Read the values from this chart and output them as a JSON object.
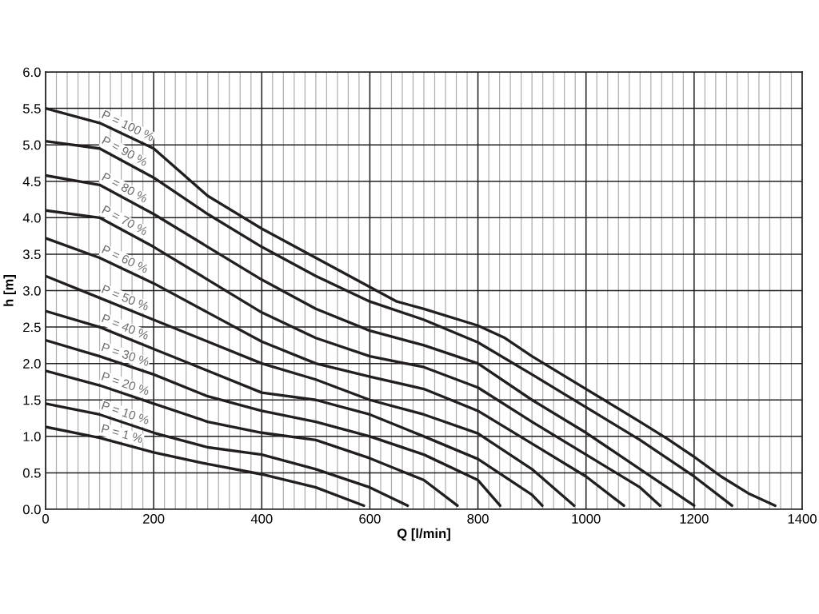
{
  "chart_data": {
    "type": "line",
    "xlabel": "Q [l/min]",
    "ylabel": "h [m]",
    "xlim": [
      0,
      1400
    ],
    "ylim": [
      0,
      6.0
    ],
    "xticks": [
      0,
      {
        "value": 20,
        "label": null
      },
      {
        "value": 40,
        "label": null
      },
      {
        "value": 60,
        "label": null
      },
      {
        "value": 80,
        "label": null
      },
      {
        "value": 100,
        "label": null
      },
      {
        "value": 120,
        "label": null
      },
      {
        "value": 140,
        "label": null
      },
      {
        "value": 160,
        "label": null
      },
      {
        "value": 180,
        "label": null
      },
      200,
      {
        "value": 220,
        "label": null
      },
      {
        "value": 240,
        "label": null
      },
      {
        "value": 260,
        "label": null
      },
      {
        "value": 280,
        "label": null
      },
      {
        "value": 300,
        "label": null
      },
      {
        "value": 320,
        "label": null
      },
      {
        "value": 340,
        "label": null
      },
      {
        "value": 360,
        "label": null
      },
      {
        "value": 380,
        "label": null
      },
      400,
      {
        "value": 420,
        "label": null
      },
      {
        "value": 440,
        "label": null
      },
      {
        "value": 460,
        "label": null
      },
      {
        "value": 480,
        "label": null
      },
      {
        "value": 500,
        "label": null
      },
      {
        "value": 520,
        "label": null
      },
      {
        "value": 540,
        "label": null
      },
      {
        "value": 560,
        "label": null
      },
      {
        "value": 580,
        "label": null
      },
      600,
      {
        "value": 620,
        "label": null
      },
      {
        "value": 640,
        "label": null
      },
      {
        "value": 660,
        "label": null
      },
      {
        "value": 680,
        "label": null
      },
      {
        "value": 700,
        "label": null
      },
      {
        "value": 720,
        "label": null
      },
      {
        "value": 740,
        "label": null
      },
      {
        "value": 760,
        "label": null
      },
      {
        "value": 780,
        "label": null
      },
      800,
      {
        "value": 820,
        "label": null
      },
      {
        "value": 840,
        "label": null
      },
      {
        "value": 860,
        "label": null
      },
      {
        "value": 880,
        "label": null
      },
      {
        "value": 900,
        "label": null
      },
      {
        "value": 920,
        "label": null
      },
      {
        "value": 940,
        "label": null
      },
      {
        "value": 960,
        "label": null
      },
      {
        "value": 980,
        "label": null
      },
      1000,
      {
        "value": 1020,
        "label": null
      },
      {
        "value": 1040,
        "label": null
      },
      {
        "value": 1060,
        "label": null
      },
      {
        "value": 1080,
        "label": null
      },
      {
        "value": 1100,
        "label": null
      },
      {
        "value": 1120,
        "label": null
      },
      {
        "value": 1140,
        "label": null
      },
      {
        "value": 1160,
        "label": null
      },
      {
        "value": 1180,
        "label": null
      },
      1200,
      {
        "value": 1220,
        "label": null
      },
      {
        "value": 1240,
        "label": null
      },
      {
        "value": 1260,
        "label": null
      },
      {
        "value": 1280,
        "label": null
      },
      {
        "value": 1300,
        "label": null
      },
      {
        "value": 1320,
        "label": null
      },
      {
        "value": 1340,
        "label": null
      },
      {
        "value": 1360,
        "label": null
      },
      {
        "value": 1380,
        "label": null
      },
      1400
    ],
    "yticks": [
      {
        "value": 0,
        "label": "0.0"
      },
      0.5,
      {
        "value": 1,
        "label": "1.0"
      },
      1.5,
      {
        "value": 2,
        "label": "2.0"
      },
      2.5,
      {
        "value": 3,
        "label": "3.0"
      },
      3.5,
      {
        "value": 4,
        "label": "4.0"
      },
      4.5,
      {
        "value": 5,
        "label": "5.0"
      },
      5.5,
      {
        "value": 6,
        "label": "6.0"
      }
    ],
    "grid": true,
    "legend": false,
    "marker": "none",
    "line_style": "solid",
    "series": [
      {
        "name": "P = 100 %",
        "color": "#231f20",
        "x": [
          0,
          100,
          200,
          300,
          400,
          500,
          600,
          650,
          700,
          800,
          850,
          900,
          1000,
          1100,
          1150,
          1200,
          1250,
          1300,
          1350
        ],
        "values": [
          5.5,
          5.3,
          4.95,
          4.3,
          3.85,
          3.45,
          3.05,
          2.85,
          2.75,
          2.52,
          2.35,
          2.1,
          1.65,
          1.2,
          0.97,
          0.72,
          0.45,
          0.22,
          0.05
        ]
      },
      {
        "name": "P = 90 %",
        "color": "#231f20",
        "x": [
          0,
          100,
          200,
          300,
          400,
          500,
          600,
          700,
          800,
          900,
          1000,
          1100,
          1200,
          1270
        ],
        "values": [
          5.05,
          4.95,
          4.55,
          4.05,
          3.6,
          3.2,
          2.85,
          2.6,
          2.29,
          1.85,
          1.4,
          0.95,
          0.45,
          0.05
        ]
      },
      {
        "name": "P = 80 %",
        "color": "#231f20",
        "x": [
          0,
          100,
          200,
          300,
          400,
          500,
          600,
          700,
          800,
          900,
          1000,
          1100,
          1200
        ],
        "values": [
          4.58,
          4.45,
          4.05,
          3.6,
          3.15,
          2.75,
          2.45,
          2.25,
          2.0,
          1.5,
          1.05,
          0.55,
          0.05
        ]
      },
      {
        "name": "P = 70 %",
        "color": "#231f20",
        "x": [
          0,
          100,
          200,
          300,
          400,
          500,
          600,
          700,
          800,
          900,
          1000,
          1100,
          1137
        ],
        "values": [
          4.1,
          4.0,
          3.6,
          3.15,
          2.7,
          2.35,
          2.1,
          1.95,
          1.67,
          1.2,
          0.75,
          0.3,
          0.05
        ]
      },
      {
        "name": "P = 60 %",
        "color": "#231f20",
        "x": [
          0,
          100,
          200,
          300,
          400,
          500,
          600,
          700,
          800,
          900,
          1000,
          1070
        ],
        "values": [
          3.72,
          3.45,
          3.1,
          2.7,
          2.3,
          2.0,
          1.82,
          1.65,
          1.35,
          0.9,
          0.45,
          0.05
        ]
      },
      {
        "name": "P = 50 %",
        "color": "#231f20",
        "x": [
          0,
          100,
          200,
          300,
          400,
          500,
          600,
          700,
          800,
          900,
          978
        ],
        "values": [
          3.2,
          2.9,
          2.6,
          2.3,
          2.0,
          1.78,
          1.5,
          1.3,
          1.04,
          0.55,
          0.05
        ]
      },
      {
        "name": "P = 40 %",
        "color": "#231f20",
        "x": [
          0,
          100,
          200,
          300,
          400,
          500,
          600,
          700,
          800,
          900,
          919
        ],
        "values": [
          2.72,
          2.5,
          2.2,
          1.9,
          1.6,
          1.5,
          1.3,
          1.0,
          0.69,
          0.2,
          0.05
        ]
      },
      {
        "name": "P = 30 %",
        "color": "#231f20",
        "x": [
          0,
          100,
          200,
          300,
          400,
          500,
          600,
          700,
          800,
          841
        ],
        "values": [
          2.32,
          2.1,
          1.85,
          1.55,
          1.35,
          1.2,
          1.0,
          0.75,
          0.4,
          0.05
        ]
      },
      {
        "name": "P = 20 %",
        "color": "#231f20",
        "x": [
          0,
          100,
          200,
          300,
          400,
          500,
          600,
          700,
          762
        ],
        "values": [
          1.9,
          1.7,
          1.45,
          1.2,
          1.05,
          0.95,
          0.7,
          0.4,
          0.05
        ]
      },
      {
        "name": "P = 10 %",
        "color": "#231f20",
        "x": [
          0,
          100,
          200,
          300,
          400,
          500,
          600,
          670
        ],
        "values": [
          1.45,
          1.3,
          1.05,
          0.85,
          0.75,
          0.55,
          0.3,
          0.05
        ]
      },
      {
        "name": "P = 1 %",
        "color": "#231f20",
        "x": [
          0,
          100,
          200,
          300,
          400,
          500,
          589
        ],
        "values": [
          1.13,
          0.98,
          0.78,
          0.62,
          0.48,
          0.3,
          0.05
        ]
      }
    ]
  }
}
